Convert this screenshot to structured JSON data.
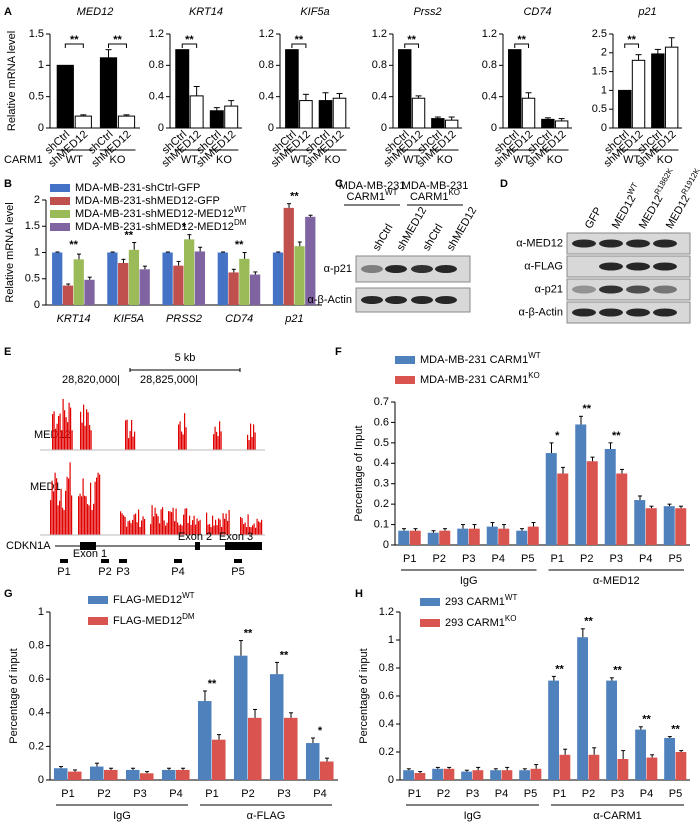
{
  "panel_labels": [
    "A",
    "B",
    "C",
    "D",
    "E",
    "F",
    "G",
    "H"
  ],
  "chart_data": [
    {
      "type": "bar",
      "title": "MED12",
      "ylabel": "Relative mRNA level",
      "group_title": "CARM1",
      "categories": [
        "shCtrl",
        "shMED12",
        "shCtrl",
        "shMED12"
      ],
      "values": [
        1.0,
        0.19,
        1.12,
        0.19
      ],
      "errors": [
        0,
        0.02,
        0.13,
        0.02
      ],
      "colors": [
        "#000000",
        "#ffffff",
        "#000000",
        "#ffffff"
      ],
      "ylim": [
        0,
        1.5
      ],
      "yticks": [
        0,
        0.5,
        1,
        1.5
      ],
      "groups": [
        "WT",
        "KO"
      ],
      "annotations": [
        "**",
        "**"
      ]
    },
    {
      "type": "bar",
      "title": "KRT14",
      "categories": [
        "shCtrl",
        "shMED12",
        "shCtrl",
        "shMED12"
      ],
      "values": [
        1.0,
        0.41,
        0.22,
        0.28
      ],
      "errors": [
        0,
        0.12,
        0.04,
        0.07
      ],
      "colors": [
        "#000000",
        "#ffffff",
        "#000000",
        "#ffffff"
      ],
      "ylim": [
        0,
        1.2
      ],
      "yticks": [
        0,
        0.4,
        0.8,
        1.2
      ],
      "groups": [
        "WT",
        "KO"
      ],
      "annotations": [
        "**"
      ]
    },
    {
      "type": "bar",
      "title": "KIF5a",
      "categories": [
        "shCtrl",
        "shMED12",
        "shCtrl",
        "shMED12"
      ],
      "values": [
        1.0,
        0.35,
        0.35,
        0.38
      ],
      "errors": [
        0,
        0.08,
        0.1,
        0.06
      ],
      "colors": [
        "#000000",
        "#ffffff",
        "#000000",
        "#ffffff"
      ],
      "ylim": [
        0,
        1.2
      ],
      "yticks": [
        0,
        0.4,
        0.8,
        1.2
      ],
      "groups": [
        "WT",
        "KO"
      ],
      "annotations": [
        "**"
      ]
    },
    {
      "type": "bar",
      "title": "Prss2",
      "categories": [
        "shCtrl",
        "shMED12",
        "shCtrl",
        "shMED12"
      ],
      "values": [
        1.0,
        0.38,
        0.12,
        0.1
      ],
      "errors": [
        0,
        0.03,
        0.02,
        0.04
      ],
      "colors": [
        "#000000",
        "#ffffff",
        "#000000",
        "#ffffff"
      ],
      "ylim": [
        0,
        1.2
      ],
      "yticks": [
        0,
        0.4,
        0.8,
        1.2
      ],
      "groups": [
        "WT",
        "KO"
      ],
      "annotations": [
        "**"
      ]
    },
    {
      "type": "bar",
      "title": "CD74",
      "categories": [
        "shCtrl",
        "shMED12",
        "shCtrl",
        "shMED12"
      ],
      "values": [
        1.0,
        0.38,
        0.11,
        0.09
      ],
      "errors": [
        0,
        0.07,
        0.02,
        0.03
      ],
      "colors": [
        "#000000",
        "#ffffff",
        "#000000",
        "#ffffff"
      ],
      "ylim": [
        0,
        1.2
      ],
      "yticks": [
        0,
        0.4,
        0.8,
        1.2
      ],
      "groups": [
        "WT",
        "KO"
      ],
      "annotations": [
        "**"
      ]
    },
    {
      "type": "bar",
      "title": "p21",
      "categories": [
        "shCtrl",
        "shMED12",
        "shCtrl",
        "shMED12"
      ],
      "values": [
        1.0,
        1.8,
        1.97,
        2.15
      ],
      "errors": [
        0,
        0.15,
        0.12,
        0.25
      ],
      "colors": [
        "#000000",
        "#ffffff",
        "#000000",
        "#ffffff"
      ],
      "ylim": [
        0,
        2.5
      ],
      "yticks": [
        0,
        0.5,
        1,
        1.5,
        2,
        2.5
      ],
      "groups": [
        "WT",
        "KO"
      ],
      "annotations": [
        "**"
      ]
    },
    {
      "type": "grouped_bar",
      "ylabel": "Relative mRNA level",
      "categories": [
        "KRT14",
        "KIF5A",
        "PRSS2",
        "CD74",
        "p21"
      ],
      "series": [
        {
          "name": "MDA-MB-231-shCtrl-GFP",
          "color": "#4472c4",
          "values": [
            1,
            1,
            1,
            1,
            1
          ],
          "errors": [
            0.01,
            0.01,
            0.01,
            0.01,
            0.01
          ]
        },
        {
          "name": "MDA-MB-231-shMED12-GFP",
          "color": "#c0504d",
          "values": [
            0.37,
            0.8,
            0.75,
            0.62,
            1.85
          ],
          "errors": [
            0.03,
            0.07,
            0.08,
            0.06,
            0.08
          ]
        },
        {
          "name": "MDA-MB-231-shMED12-MED12",
          "name_sup": "WT",
          "color": "#9bbb59",
          "values": [
            0.87,
            1.05,
            1.25,
            0.88,
            1.12
          ],
          "errors": [
            0.1,
            0.14,
            0.09,
            0.12,
            0.08
          ]
        },
        {
          "name": "MDA-MB-231-shMED12-MED12",
          "name_sup": "DM",
          "color": "#8064a2",
          "values": [
            0.48,
            0.68,
            1.02,
            0.58,
            1.68
          ],
          "errors": [
            0.05,
            0.06,
            0.08,
            0.05,
            0.03
          ]
        }
      ],
      "ylim": [
        0,
        2
      ],
      "yticks": [
        0,
        0.5,
        1,
        1.5,
        2
      ],
      "annotations": [
        "**",
        "**",
        "*",
        "**",
        "**"
      ]
    },
    {
      "type": "grouped_bar",
      "ylabel": "Percentage of Input",
      "categories": [
        "P1",
        "P2",
        "P3",
        "P4",
        "P5",
        "P1",
        "P2",
        "P3",
        "P4",
        "P5"
      ],
      "series": [
        {
          "name": "MDA-MB-231 CARM1",
          "name_sup": "WT",
          "color": "#4f81bd",
          "values": [
            0.07,
            0.06,
            0.08,
            0.09,
            0.07,
            0.45,
            0.59,
            0.47,
            0.22,
            0.19
          ],
          "errors": [
            0.01,
            0.01,
            0.02,
            0.02,
            0.01,
            0.05,
            0.04,
            0.03,
            0.02,
            0.01
          ]
        },
        {
          "name": "MDA-MB-231 CARM1",
          "name_sup": "KO",
          "color": "#d9534f",
          "values": [
            0.07,
            0.07,
            0.08,
            0.08,
            0.09,
            0.35,
            0.41,
            0.35,
            0.18,
            0.18
          ],
          "errors": [
            0.01,
            0.01,
            0.02,
            0.02,
            0.02,
            0.03,
            0.02,
            0.02,
            0.01,
            0.01
          ]
        }
      ],
      "ylim": [
        0,
        0.7
      ],
      "yticks": [
        0,
        0.1,
        0.2,
        0.3,
        0.4,
        0.5,
        0.6,
        0.7
      ],
      "groups": [
        "IgG",
        "α-MED12"
      ],
      "annotations": [
        null,
        null,
        null,
        null,
        null,
        "*",
        "**",
        "**",
        null,
        null
      ]
    },
    {
      "type": "grouped_bar",
      "ylabel": "Percentage of input",
      "categories": [
        "P1",
        "P2",
        "P3",
        "P4",
        "P1",
        "P2",
        "P3",
        "P4"
      ],
      "series": [
        {
          "name": "FLAG-MED12",
          "name_sup": "WT",
          "color": "#4f81bd",
          "values": [
            0.07,
            0.08,
            0.06,
            0.06,
            0.47,
            0.74,
            0.63,
            0.22
          ],
          "errors": [
            0.01,
            0.02,
            0.01,
            0.01,
            0.06,
            0.09,
            0.07,
            0.03
          ]
        },
        {
          "name": "FLAG-MED12",
          "name_sup": "DM",
          "color": "#d9534f",
          "values": [
            0.05,
            0.06,
            0.04,
            0.06,
            0.24,
            0.37,
            0.37,
            0.11
          ],
          "errors": [
            0.01,
            0.01,
            0.01,
            0.01,
            0.03,
            0.05,
            0.03,
            0.02
          ]
        }
      ],
      "ylim": [
        0,
        1
      ],
      "yticks": [
        0,
        0.2,
        0.4,
        0.6,
        0.8,
        1
      ],
      "groups": [
        "IgG",
        "α-FLAG"
      ],
      "annotations": [
        null,
        null,
        null,
        null,
        "**",
        "**",
        "**",
        "*"
      ]
    },
    {
      "type": "grouped_bar",
      "ylabel": "Percentage of input",
      "categories": [
        "P1",
        "P2",
        "P3",
        "P4",
        "P5",
        "P1",
        "P2",
        "P3",
        "P4",
        "P5"
      ],
      "series": [
        {
          "name": "293 CARM1",
          "name_sup": "WT",
          "color": "#4f81bd",
          "values": [
            0.07,
            0.08,
            0.06,
            0.07,
            0.07,
            0.71,
            1.02,
            0.71,
            0.36,
            0.3
          ],
          "errors": [
            0.01,
            0.01,
            0.01,
            0.01,
            0.01,
            0.03,
            0.06,
            0.02,
            0.02,
            0.01
          ]
        },
        {
          "name": "293 CARM1",
          "name_sup": "KO",
          "color": "#d9534f",
          "values": [
            0.05,
            0.08,
            0.07,
            0.07,
            0.08,
            0.18,
            0.18,
            0.15,
            0.16,
            0.2
          ],
          "errors": [
            0.01,
            0.01,
            0.02,
            0.02,
            0.03,
            0.04,
            0.05,
            0.06,
            0.02,
            0.01
          ]
        }
      ],
      "ylim": [
        0,
        1.2
      ],
      "yticks": [
        0,
        0.2,
        0.4,
        0.6,
        0.8,
        1,
        1.2
      ],
      "groups": [
        "IgG",
        "α-CARM1"
      ],
      "annotations": [
        null,
        null,
        null,
        null,
        null,
        "**",
        "**",
        "**",
        "**",
        "**"
      ]
    }
  ],
  "blot_c": {
    "headers": [
      {
        "line1": "MDA-MB-231",
        "line2": "CARM1",
        "sup": "WT"
      },
      {
        "line1": "MDA-MB-231",
        "line2": "CARM1",
        "sup": "KO"
      }
    ],
    "lanes": [
      "shCtrl",
      "shMED12",
      "shCtrl",
      "shMED12"
    ],
    "rows": [
      "α-p21",
      "α-β-Actin"
    ]
  },
  "blot_d": {
    "lanes": [
      {
        "text": "GFP"
      },
      {
        "text": "MED12",
        "sup": "WT"
      },
      {
        "text": "MED12",
        "sup": "R1862K"
      },
      {
        "text": "MED12",
        "sup": "R1912K"
      }
    ],
    "rows": [
      "α-MED12",
      "α-FLAG",
      "α-p21",
      "α-β-Actin"
    ]
  },
  "track_e": {
    "scale": "5 kb",
    "coords": [
      "28,820,000|",
      "28,825,000|"
    ],
    "tracks": [
      "MED12",
      "MED1"
    ],
    "gene": "CDKN1A",
    "exons": [
      "Exon 1",
      "Exon 2",
      "Exon 3"
    ],
    "primers": [
      "P1",
      "P2",
      "P3",
      "P4",
      "P5"
    ]
  }
}
